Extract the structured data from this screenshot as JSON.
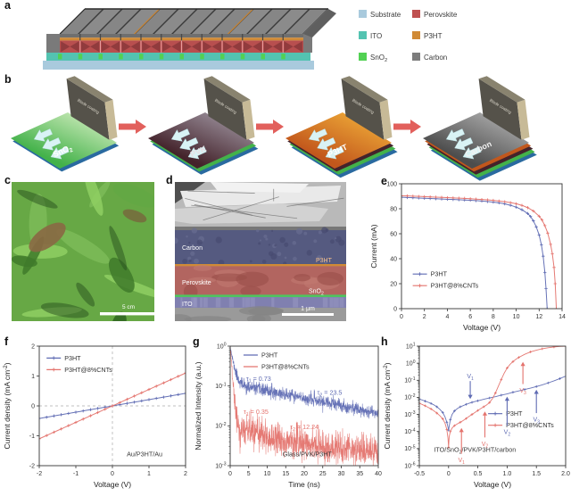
{
  "colors": {
    "blue": "#5f6bb3",
    "red": "#e4736d",
    "axis": "#333333"
  },
  "panel_a": {
    "label": "a",
    "legend": [
      {
        "name": "Substrate",
        "color": "#a9cadd"
      },
      {
        "name": "ITO",
        "color": "#53c3b1"
      },
      {
        "name": "SnO_{2}",
        "color": "#52d153"
      },
      {
        "name": "Perovskite",
        "color": "#bf5050"
      },
      {
        "name": "P3HT",
        "color": "#d08a36"
      },
      {
        "name": "Carbon",
        "color": "#7d7d7d"
      }
    ]
  },
  "panel_b": {
    "label": "b",
    "blade_label": "Blade coating",
    "steps": [
      {
        "name": "SnO_{2}",
        "label_color": "#ffffff",
        "surface": [
          "#d8f0c4",
          "#43b24a"
        ],
        "under": [
          "#2a6aa0"
        ]
      },
      {
        "name": "PVK",
        "label_color": "#e8e0e4",
        "surface": [
          "#a39aa6",
          "#44232b"
        ],
        "under": [
          "#2a6aa0",
          "#43b24a"
        ]
      },
      {
        "name": "P3HT",
        "label_color": "#ffffff",
        "surface": [
          "#f2b13a",
          "#c2571c"
        ],
        "under": [
          "#2a6aa0",
          "#43b24a",
          "#44232b"
        ]
      },
      {
        "name": "Carbon",
        "label_color": "#f2f2f2",
        "surface": [
          "#b5b5b5",
          "#4d4d4d"
        ],
        "under": [
          "#2a6aa0",
          "#43b24a",
          "#44232b",
          "#c2571c"
        ]
      }
    ]
  },
  "panel_c": {
    "label": "c",
    "scale_bar": "5 cm"
  },
  "panel_d": {
    "label": "d",
    "layer_labels": {
      "carbon": "Carbon",
      "p3ht": "P3HT",
      "perovskite": "Perovskite",
      "sno2": "SnO_{2}",
      "ito": "ITO"
    },
    "scale_bar": "1 μm"
  },
  "chart_data": [
    {
      "panel": "e",
      "type": "line",
      "xlabel": "Voltage (V)",
      "ylabel": "Current (mA)",
      "xlim": [
        0,
        14
      ],
      "ylim": [
        0,
        100
      ],
      "xticks": [
        0,
        2,
        4,
        6,
        8,
        10,
        12,
        14
      ],
      "yticks": [
        0,
        20,
        40,
        60,
        80,
        100
      ],
      "legend": {
        "fx": 0.07,
        "fy": 0.68
      },
      "series": [
        {
          "name": "P3HT",
          "color": "#5f6bb3",
          "marker_every": 1,
          "points": [
            [
              0,
              89.2
            ],
            [
              0.5,
              89.0
            ],
            [
              1,
              88.8
            ],
            [
              1.5,
              88.6
            ],
            [
              2,
              88.4
            ],
            [
              2.5,
              88.2
            ],
            [
              3,
              88.0
            ],
            [
              3.5,
              87.8
            ],
            [
              4,
              87.6
            ],
            [
              4.5,
              87.4
            ],
            [
              5,
              87.2
            ],
            [
              5.5,
              87.0
            ],
            [
              6,
              86.8
            ],
            [
              6.5,
              86.5
            ],
            [
              7,
              86.2
            ],
            [
              7.5,
              85.8
            ],
            [
              8,
              85.3
            ],
            [
              8.5,
              84.7
            ],
            [
              9,
              83.9
            ],
            [
              9.5,
              82.8
            ],
            [
              10,
              81.3
            ],
            [
              10.5,
              79.2
            ],
            [
              11,
              76.2
            ],
            [
              11.25,
              73.8
            ],
            [
              11.5,
              70.3
            ],
            [
              11.75,
              65.5
            ],
            [
              12,
              59.0
            ],
            [
              12.2,
              51.0
            ],
            [
              12.35,
              42.0
            ],
            [
              12.5,
              29.0
            ],
            [
              12.6,
              16.0
            ],
            [
              12.7,
              0
            ]
          ]
        },
        {
          "name": "P3HT@8%CNTs",
          "color": "#e4736d",
          "marker_every": 1,
          "points": [
            [
              0,
              90.4
            ],
            [
              0.5,
              90.3
            ],
            [
              1,
              90.1
            ],
            [
              1.5,
              89.9
            ],
            [
              2,
              89.7
            ],
            [
              2.5,
              89.5
            ],
            [
              3,
              89.3
            ],
            [
              3.5,
              89.1
            ],
            [
              4,
              88.9
            ],
            [
              4.5,
              88.7
            ],
            [
              5,
              88.5
            ],
            [
              5.5,
              88.3
            ],
            [
              6,
              88.0
            ],
            [
              6.5,
              87.7
            ],
            [
              7,
              87.4
            ],
            [
              7.5,
              87.1
            ],
            [
              8,
              86.7
            ],
            [
              8.5,
              86.2
            ],
            [
              9,
              85.6
            ],
            [
              9.5,
              84.9
            ],
            [
              10,
              84.0
            ],
            [
              10.5,
              82.7
            ],
            [
              11,
              80.9
            ],
            [
              11.5,
              78.2
            ],
            [
              12,
              74.0
            ],
            [
              12.25,
              71.0
            ],
            [
              12.5,
              66.5
            ],
            [
              12.75,
              60.5
            ],
            [
              13,
              51.5
            ],
            [
              13.15,
              44.0
            ],
            [
              13.3,
              33.0
            ],
            [
              13.4,
              20.0
            ],
            [
              13.5,
              0
            ]
          ]
        }
      ]
    },
    {
      "panel": "f",
      "type": "line",
      "xlabel": "Voltage (V)",
      "ylabel": "Current density (mA cm^{-2})",
      "xlim": [
        -2,
        2
      ],
      "ylim": [
        -2,
        2
      ],
      "xticks": [
        -2,
        -1,
        0,
        1,
        2
      ],
      "yticks": [
        -2,
        -1,
        0,
        1,
        2
      ],
      "zero_lines": true,
      "legend": {
        "fx": 0.05,
        "fy": 0.055
      },
      "annotations": [
        {
          "text": "Au/P3HT/Au",
          "fx": 0.72,
          "fy": 0.92,
          "color": "#3a3a3a"
        }
      ],
      "series": [
        {
          "name": "P3HT",
          "color": "#5f6bb3",
          "marker_every": 2,
          "gen": {
            "type": "linear",
            "slope": 0.21,
            "x0": -2,
            "x1": 2,
            "n": 41
          }
        },
        {
          "name": "P3HT@8%CNTs",
          "color": "#e4736d",
          "marker_every": 2,
          "gen": {
            "type": "linear",
            "slope": 0.55,
            "x0": -2,
            "x1": 2,
            "n": 41
          }
        }
      ]
    },
    {
      "panel": "g",
      "type": "line",
      "xlabel": "Time (ns)",
      "ylabel": "Normalized Intensity (a.u.)",
      "xlim": [
        0,
        40
      ],
      "ylim": [
        0.001,
        1
      ],
      "ylog": true,
      "xticks": [
        0,
        5,
        10,
        15,
        20,
        25,
        30,
        35,
        40
      ],
      "yticks_exp": [
        -3,
        -2,
        -1,
        0
      ],
      "legend": {
        "fx": 0.09,
        "fy": 0.03,
        "marker": "line"
      },
      "annotations": [
        {
          "text": "τ_{1} = 0.73",
          "x": 4.3,
          "y": 0.135,
          "color": "#5f6bb3"
        },
        {
          "text": "τ_{2} = 23.5",
          "x": 23.5,
          "y": 0.06,
          "color": "#5f6bb3"
        },
        {
          "text": "τ_{1} = 0.35",
          "x": 3.6,
          "y": 0.02,
          "color": "#e4736d"
        },
        {
          "text": "τ_{2} = 12.24",
          "x": 16.2,
          "y": 0.0082,
          "color": "#e4736d"
        },
        {
          "text": "Glass/PVK/P3HT",
          "fx": 0.52,
          "fy": 0.92,
          "color": "#3a3a3a"
        }
      ],
      "series": [
        {
          "name": "P3HT",
          "color": "#5f6bb3",
          "lw": 0.55,
          "gen": {
            "type": "biexp",
            "a1": 0.88,
            "tau1": 0.73,
            "a2": 0.115,
            "tau2": 23.5,
            "floor": 0,
            "noise": 0.18,
            "tmax": 40,
            "n": 950,
            "seed": 11
          }
        },
        {
          "name": "P3HT@8%CNTs",
          "color": "#e4736d",
          "lw": 0.55,
          "gen": {
            "type": "biexp",
            "a1": 0.99,
            "tau1": 0.35,
            "a2": 0.008,
            "tau2": 12.24,
            "floor": 0.002,
            "noise": 0.45,
            "tmax": 40,
            "n": 950,
            "seed": 29
          }
        }
      ]
    },
    {
      "panel": "h",
      "type": "line",
      "xlabel": "Voltage (V)",
      "ylabel": "Current density (mA cm^{-2})",
      "xlim": [
        -0.5,
        2
      ],
      "ylim": [
        1e-06,
        10
      ],
      "ylog": true,
      "xticks": [
        -0.5,
        0,
        0.5,
        1,
        1.5,
        2
      ],
      "xtick_labels": [
        "-0.5",
        "0",
        "0.5",
        "1.0",
        "1.5",
        "2.0"
      ],
      "yticks_exp": [
        -6,
        -5,
        -4,
        -3,
        -2,
        -1,
        0,
        1
      ],
      "legend": {
        "fx": 0.47,
        "fy": 0.52
      },
      "annotations": [
        {
          "text": "ITO/SnO_{2}/PVK/P3HT/carbon",
          "fx": 0.38,
          "fy": 0.885,
          "color": "#3a3a3a"
        }
      ],
      "arrows": [
        {
          "x": 0.37,
          "tail": 0.09,
          "tip": 0.008,
          "color": "#5f6bb3",
          "label": "V_{1}"
        },
        {
          "x": 0.22,
          "tail": 5e-06,
          "tip": 0.00016,
          "color": "#e4736d",
          "label": "V_{1}"
        },
        {
          "x": 0.62,
          "tail": 4.5e-05,
          "tip": 0.0015,
          "color": "#e4736d",
          "label": "V_{2}"
        },
        {
          "x": 1.0,
          "tail": 0.00022,
          "tip": 0.011,
          "color": "#5f6bb3",
          "label": "V_{2}"
        },
        {
          "x": 1.27,
          "tail": 0.06,
          "tip": 1.2,
          "color": "#e4736d",
          "label": "V_{3}"
        },
        {
          "x": 1.5,
          "tail": 0.0012,
          "tip": 0.028,
          "color": "#5f6bb3",
          "label": "V_{3}"
        }
      ],
      "series": [
        {
          "name": "P3HT",
          "color": "#5f6bb3",
          "lw": 0.9,
          "marker_every": 2,
          "points": [
            [
              -0.5,
              0.008
            ],
            [
              -0.45,
              0.007
            ],
            [
              -0.4,
              0.006
            ],
            [
              -0.35,
              0.0052
            ],
            [
              -0.3,
              0.0044
            ],
            [
              -0.25,
              0.0036
            ],
            [
              -0.2,
              0.0028
            ],
            [
              -0.15,
              0.002
            ],
            [
              -0.1,
              0.0013
            ],
            [
              -0.06,
              0.0007
            ],
            [
              -0.03,
              0.00035
            ],
            [
              -0.01,
              0.00018
            ],
            [
              0,
              0.00012
            ],
            [
              0.01,
              0.0002
            ],
            [
              0.03,
              0.0005
            ],
            [
              0.06,
              0.001
            ],
            [
              0.1,
              0.0016
            ],
            [
              0.15,
              0.0022
            ],
            [
              0.2,
              0.0028
            ],
            [
              0.25,
              0.0033
            ],
            [
              0.3,
              0.0039
            ],
            [
              0.35,
              0.0045
            ],
            [
              0.4,
              0.0051
            ],
            [
              0.45,
              0.0057
            ],
            [
              0.5,
              0.0063
            ],
            [
              0.6,
              0.0077
            ],
            [
              0.7,
              0.0092
            ],
            [
              0.8,
              0.011
            ],
            [
              0.9,
              0.0135
            ],
            [
              1.0,
              0.016
            ],
            [
              1.1,
              0.02
            ],
            [
              1.2,
              0.024
            ],
            [
              1.3,
              0.029
            ],
            [
              1.4,
              0.035
            ],
            [
              1.5,
              0.043
            ],
            [
              1.6,
              0.054
            ],
            [
              1.7,
              0.07
            ],
            [
              1.8,
              0.092
            ],
            [
              1.9,
              0.125
            ],
            [
              2.0,
              0.175
            ]
          ]
        },
        {
          "name": "P3HT@8%CNTs",
          "color": "#e4736d",
          "lw": 0.9,
          "marker_every": 2,
          "points": [
            [
              -0.5,
              0.0045
            ],
            [
              -0.45,
              0.0038
            ],
            [
              -0.4,
              0.0032
            ],
            [
              -0.35,
              0.0026
            ],
            [
              -0.3,
              0.0021
            ],
            [
              -0.25,
              0.0016
            ],
            [
              -0.2,
              0.0012
            ],
            [
              -0.15,
              0.00085
            ],
            [
              -0.1,
              0.00055
            ],
            [
              -0.06,
              0.0003
            ],
            [
              -0.03,
              0.00013
            ],
            [
              -0.01,
              4e-05
            ],
            [
              0,
              1.2e-05
            ],
            [
              0.01,
              5e-05
            ],
            [
              0.03,
              0.0001
            ],
            [
              0.06,
              0.00016
            ],
            [
              0.1,
              0.00022
            ],
            [
              0.15,
              0.00028
            ],
            [
              0.2,
              0.00035
            ],
            [
              0.25,
              0.00044
            ],
            [
              0.3,
              0.00058
            ],
            [
              0.35,
              0.00077
            ],
            [
              0.4,
              0.001
            ],
            [
              0.45,
              0.0013
            ],
            [
              0.5,
              0.0017
            ],
            [
              0.55,
              0.0022
            ],
            [
              0.6,
              0.0028
            ],
            [
              0.65,
              0.0036
            ],
            [
              0.7,
              0.005
            ],
            [
              0.75,
              0.0085
            ],
            [
              0.8,
              0.018
            ],
            [
              0.85,
              0.045
            ],
            [
              0.9,
              0.11
            ],
            [
              0.95,
              0.26
            ],
            [
              1.0,
              0.52
            ],
            [
              1.05,
              0.85
            ],
            [
              1.1,
              1.25
            ],
            [
              1.15,
              1.7
            ],
            [
              1.2,
              2.2
            ],
            [
              1.3,
              3.3
            ],
            [
              1.4,
              4.6
            ],
            [
              1.5,
              5.8
            ],
            [
              1.6,
              7.0
            ],
            [
              1.7,
              8.0
            ],
            [
              1.8,
              8.9
            ],
            [
              1.9,
              9.6
            ],
            [
              2.0,
              10.0
            ]
          ]
        }
      ]
    }
  ]
}
